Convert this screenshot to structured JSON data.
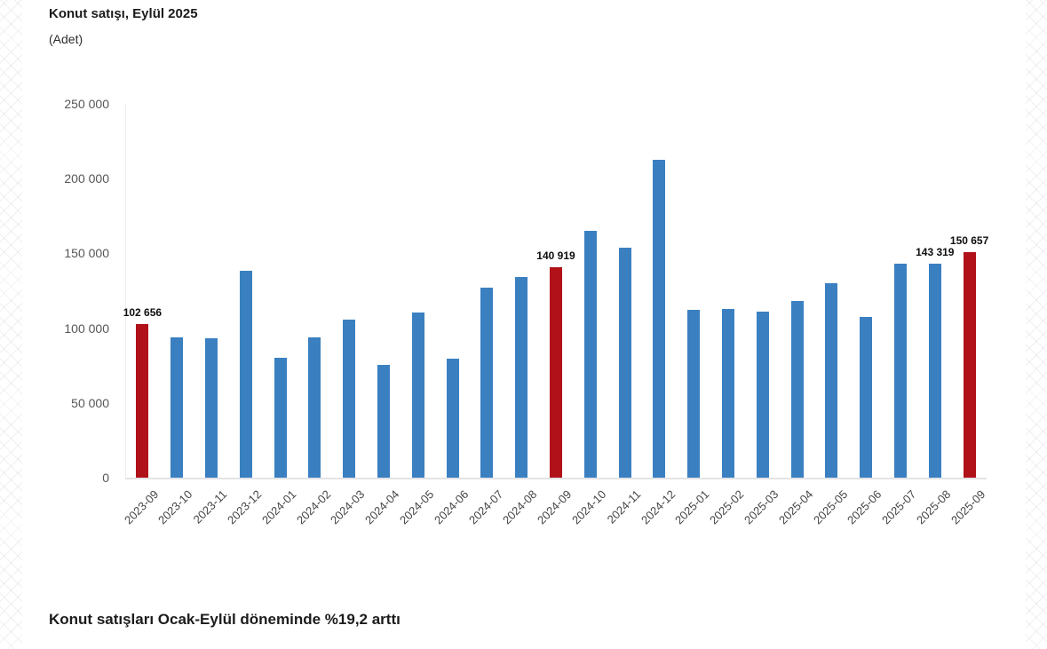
{
  "header": {
    "title": "Konut satışı, Eylül 2025",
    "subtitle": "(Adet)"
  },
  "footer": {
    "headline": "Konut satışları Ocak-Eylül döneminde %19,2 arttı"
  },
  "chart_data": {
    "type": "bar",
    "title": "Konut satışı, Eylül 2025",
    "unit_label": "(Adet)",
    "xlabel": "",
    "ylabel": "",
    "ylim": [
      0,
      250000
    ],
    "grid": false,
    "legend_position": "none",
    "bar_color": "#3a80c1",
    "highlight_color": "#b11118",
    "axis_line_color": "#e3e3e6",
    "tick_text_color": "#565658",
    "value_label_color": "#0e0e0e",
    "yticks": [
      {
        "value": 0,
        "label": "0"
      },
      {
        "value": 50000,
        "label": "50 000"
      },
      {
        "value": 100000,
        "label": "100 000"
      },
      {
        "value": 150000,
        "label": "150 000"
      },
      {
        "value": 200000,
        "label": "200 000"
      },
      {
        "value": 250000,
        "label": "250 000"
      }
    ],
    "categories": [
      "2023-09",
      "2023-10",
      "2023-11",
      "2023-12",
      "2024-01",
      "2024-02",
      "2024-03",
      "2024-04",
      "2024-05",
      "2024-06",
      "2024-07",
      "2024-08",
      "2024-09",
      "2024-10",
      "2024-11",
      "2024-12",
      "2025-01",
      "2025-02",
      "2025-03",
      "2025-04",
      "2025-05",
      "2025-06",
      "2025-07",
      "2025-08",
      "2025-09"
    ],
    "values": [
      102656,
      93761,
      93514,
      138577,
      80308,
      93902,
      105476,
      75569,
      110588,
      79313,
      127088,
      134155,
      140919,
      165138,
      153980,
      212637,
      112173,
      112818,
      110795,
      118359,
      130025,
      107723,
      142858,
      143319,
      150657
    ],
    "highlighted_categories": [
      "2023-09",
      "2024-09",
      "2025-09"
    ],
    "value_labels": {
      "2023-09": "102 656",
      "2024-09": "140 919",
      "2025-08": "143 319",
      "2025-09": "150 657"
    }
  }
}
